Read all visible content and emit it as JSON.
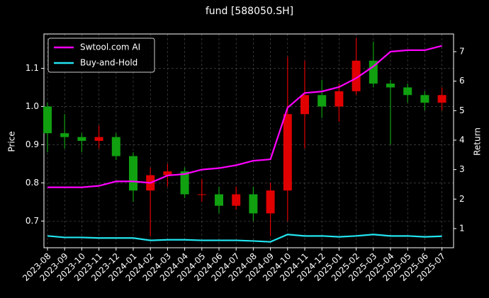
{
  "chart_data": {
    "type": "candlestick",
    "title": "fund [588050.SH]",
    "ylabel": "Price",
    "y2label": "Return",
    "categories": [
      "2023-08",
      "2023-09",
      "2023-10",
      "2023-11",
      "2023-12",
      "2024-01",
      "2024-02",
      "2024-03",
      "2024-04",
      "2024-05",
      "2024-06",
      "2024-07",
      "2024-08",
      "2024-09",
      "2024-10",
      "2024-11",
      "2024-12",
      "2025-01",
      "2025-02",
      "2025-03",
      "2025-04",
      "2025-05",
      "2025-06",
      "2025-07"
    ],
    "open": [
      1.0,
      0.93,
      0.92,
      0.91,
      0.92,
      0.87,
      0.78,
      0.82,
      0.83,
      0.77,
      0.77,
      0.74,
      0.77,
      0.72,
      0.78,
      0.98,
      1.03,
      1.0,
      1.04,
      1.12,
      1.06,
      1.05,
      1.03,
      1.01
    ],
    "high": [
      1.01,
      0.98,
      0.93,
      0.95,
      0.93,
      0.88,
      0.84,
      0.85,
      0.84,
      0.81,
      0.79,
      0.79,
      0.79,
      0.8,
      1.13,
      1.12,
      1.07,
      1.06,
      1.18,
      1.17,
      1.07,
      1.06,
      1.04,
      1.05
    ],
    "low": [
      0.88,
      0.89,
      0.88,
      0.89,
      0.86,
      0.75,
      0.66,
      0.79,
      0.76,
      0.75,
      0.72,
      0.73,
      0.7,
      0.66,
      0.7,
      0.89,
      0.97,
      0.96,
      1.03,
      1.05,
      0.9,
      1.01,
      0.99,
      0.99
    ],
    "close": [
      0.93,
      0.92,
      0.91,
      0.92,
      0.87,
      0.78,
      0.82,
      0.83,
      0.77,
      0.77,
      0.74,
      0.77,
      0.72,
      0.78,
      0.98,
      1.03,
      1.0,
      1.04,
      1.12,
      1.06,
      1.05,
      1.03,
      1.01,
      1.03
    ],
    "up_color": "#e00000",
    "down_color": "#10a010",
    "series": [
      {
        "name": "Swtool.com AI",
        "color": "#ff00ff",
        "axis": "y2",
        "values": [
          2.4,
          2.4,
          2.4,
          2.45,
          2.6,
          2.6,
          2.55,
          2.8,
          2.85,
          3.0,
          3.05,
          3.15,
          3.3,
          3.35,
          5.1,
          5.6,
          5.65,
          5.8,
          6.1,
          6.5,
          7.0,
          7.05,
          7.05,
          7.2
        ]
      },
      {
        "name": "Buy-and-Hold",
        "color": "#22e5f0",
        "axis": "y2",
        "values": [
          0.75,
          0.7,
          0.7,
          0.68,
          0.68,
          0.68,
          0.6,
          0.62,
          0.62,
          0.6,
          0.6,
          0.6,
          0.58,
          0.55,
          0.8,
          0.75,
          0.75,
          0.72,
          0.75,
          0.8,
          0.75,
          0.75,
          0.72,
          0.74
        ]
      }
    ],
    "ylim": [
      0.63,
      1.19
    ],
    "yticks": [
      0.7,
      0.8,
      0.9,
      {
        "value": 1.0,
        "label": "1.0"
      },
      1.1
    ],
    "y2lim": [
      0.35,
      7.6
    ],
    "y2ticks": [
      1,
      2,
      3,
      4,
      5,
      6,
      7
    ],
    "grid": true,
    "legend": "upper left"
  }
}
